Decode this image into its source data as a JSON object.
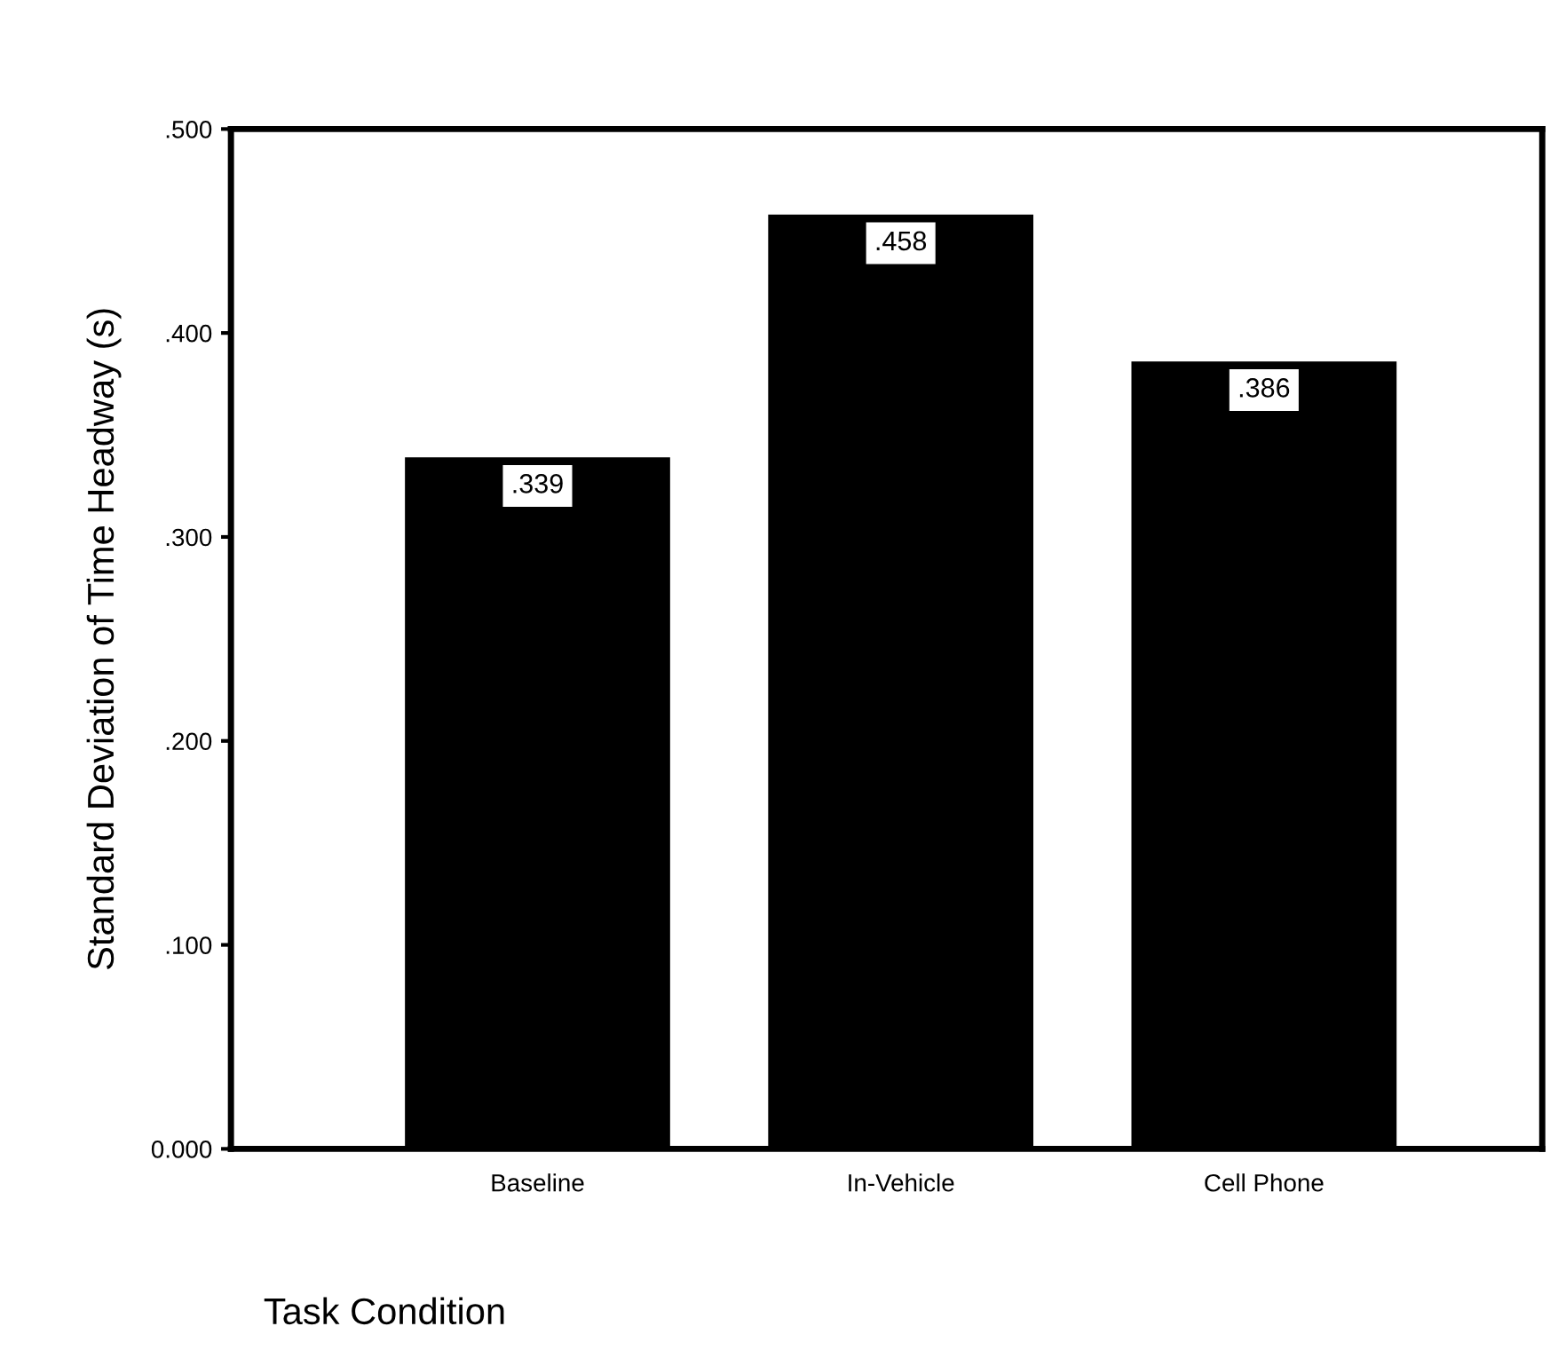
{
  "chart_data": {
    "type": "bar",
    "xlabel": "Task Condition",
    "ylabel": "Standard Deviation of Time Headway (s)",
    "categories": [
      "Baseline",
      "In-Vehicle",
      "Cell Phone"
    ],
    "values": [
      0.339,
      0.458,
      0.386
    ],
    "value_labels": [
      ".339",
      ".458",
      ".386"
    ],
    "color": "#000000",
    "ylim": [
      0,
      0.5
    ],
    "yticks": [
      {
        "value": 0,
        "label": "0.000"
      },
      {
        "value": 0.1,
        "label": ".100"
      },
      {
        "value": 0.2,
        "label": ".200"
      },
      {
        "value": 0.3,
        "label": ".300"
      },
      {
        "value": 0.4,
        "label": ".400"
      },
      {
        "value": 0.5,
        "label": ".500"
      }
    ],
    "grid": false,
    "legend": false
  }
}
